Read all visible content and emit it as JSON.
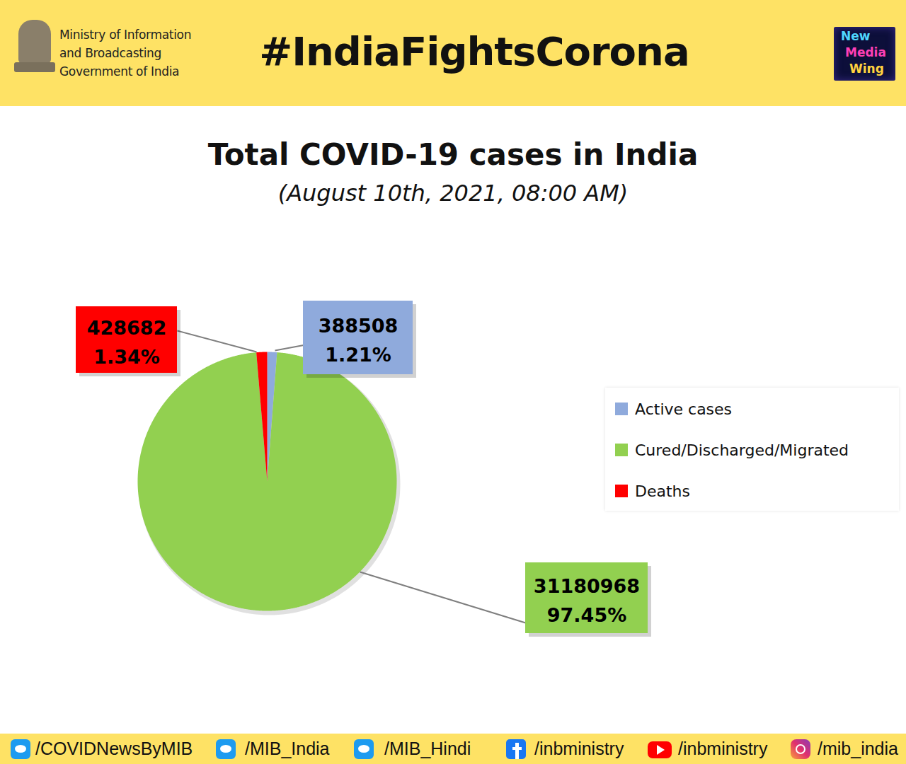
{
  "header": {
    "ministry": [
      "Ministry of Information",
      "and Broadcasting",
      "Government of India"
    ],
    "hashtag": "#IndiaFightsCorona",
    "logo": [
      "New",
      "Media",
      "Wing"
    ]
  },
  "chart_data": {
    "type": "pie",
    "title": "Total COVID-19 cases in India",
    "subtitle": "(August 10th, 2021, 08:00 AM)",
    "categories": [
      "Active cases",
      "Cured/Discharged/Migrated",
      "Deaths"
    ],
    "values": [
      388508,
      31180968,
      428682
    ],
    "percent_labels": [
      "1.21%",
      "97.45%",
      "1.34%"
    ],
    "colors": [
      "#8faadc",
      "#92d050",
      "#ff0000"
    ],
    "data_labels": true,
    "legend": "right"
  },
  "footer": {
    "handles": [
      "/COVIDNewsByMIB",
      "/MIB_India",
      "/MIB_Hindi",
      "/inbministry",
      "/inbministry",
      "/mib_india"
    ]
  }
}
